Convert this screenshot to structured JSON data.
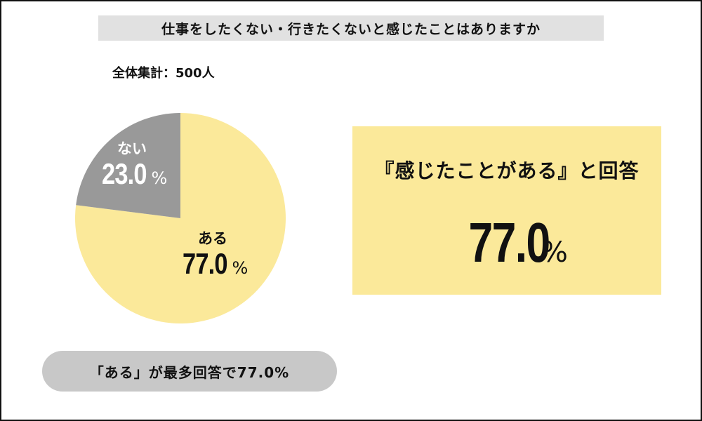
{
  "title": "仕事をしたくない・行きたくないと感じたことはありますか",
  "sample": "全体集計：500人",
  "chart_data": {
    "type": "pie",
    "slices": [
      {
        "label": "ある",
        "value": 77.0,
        "display": "77.0",
        "color": "#fbe99a"
      },
      {
        "label": "ない",
        "value": 23.0,
        "display": "23.0",
        "color": "#999999"
      }
    ],
    "unit": "%"
  },
  "highlight": {
    "heading": "『感じたことがある』と回答",
    "value": "77.0",
    "unit": "%"
  },
  "summary": "「ある」が最多回答で77.0%"
}
